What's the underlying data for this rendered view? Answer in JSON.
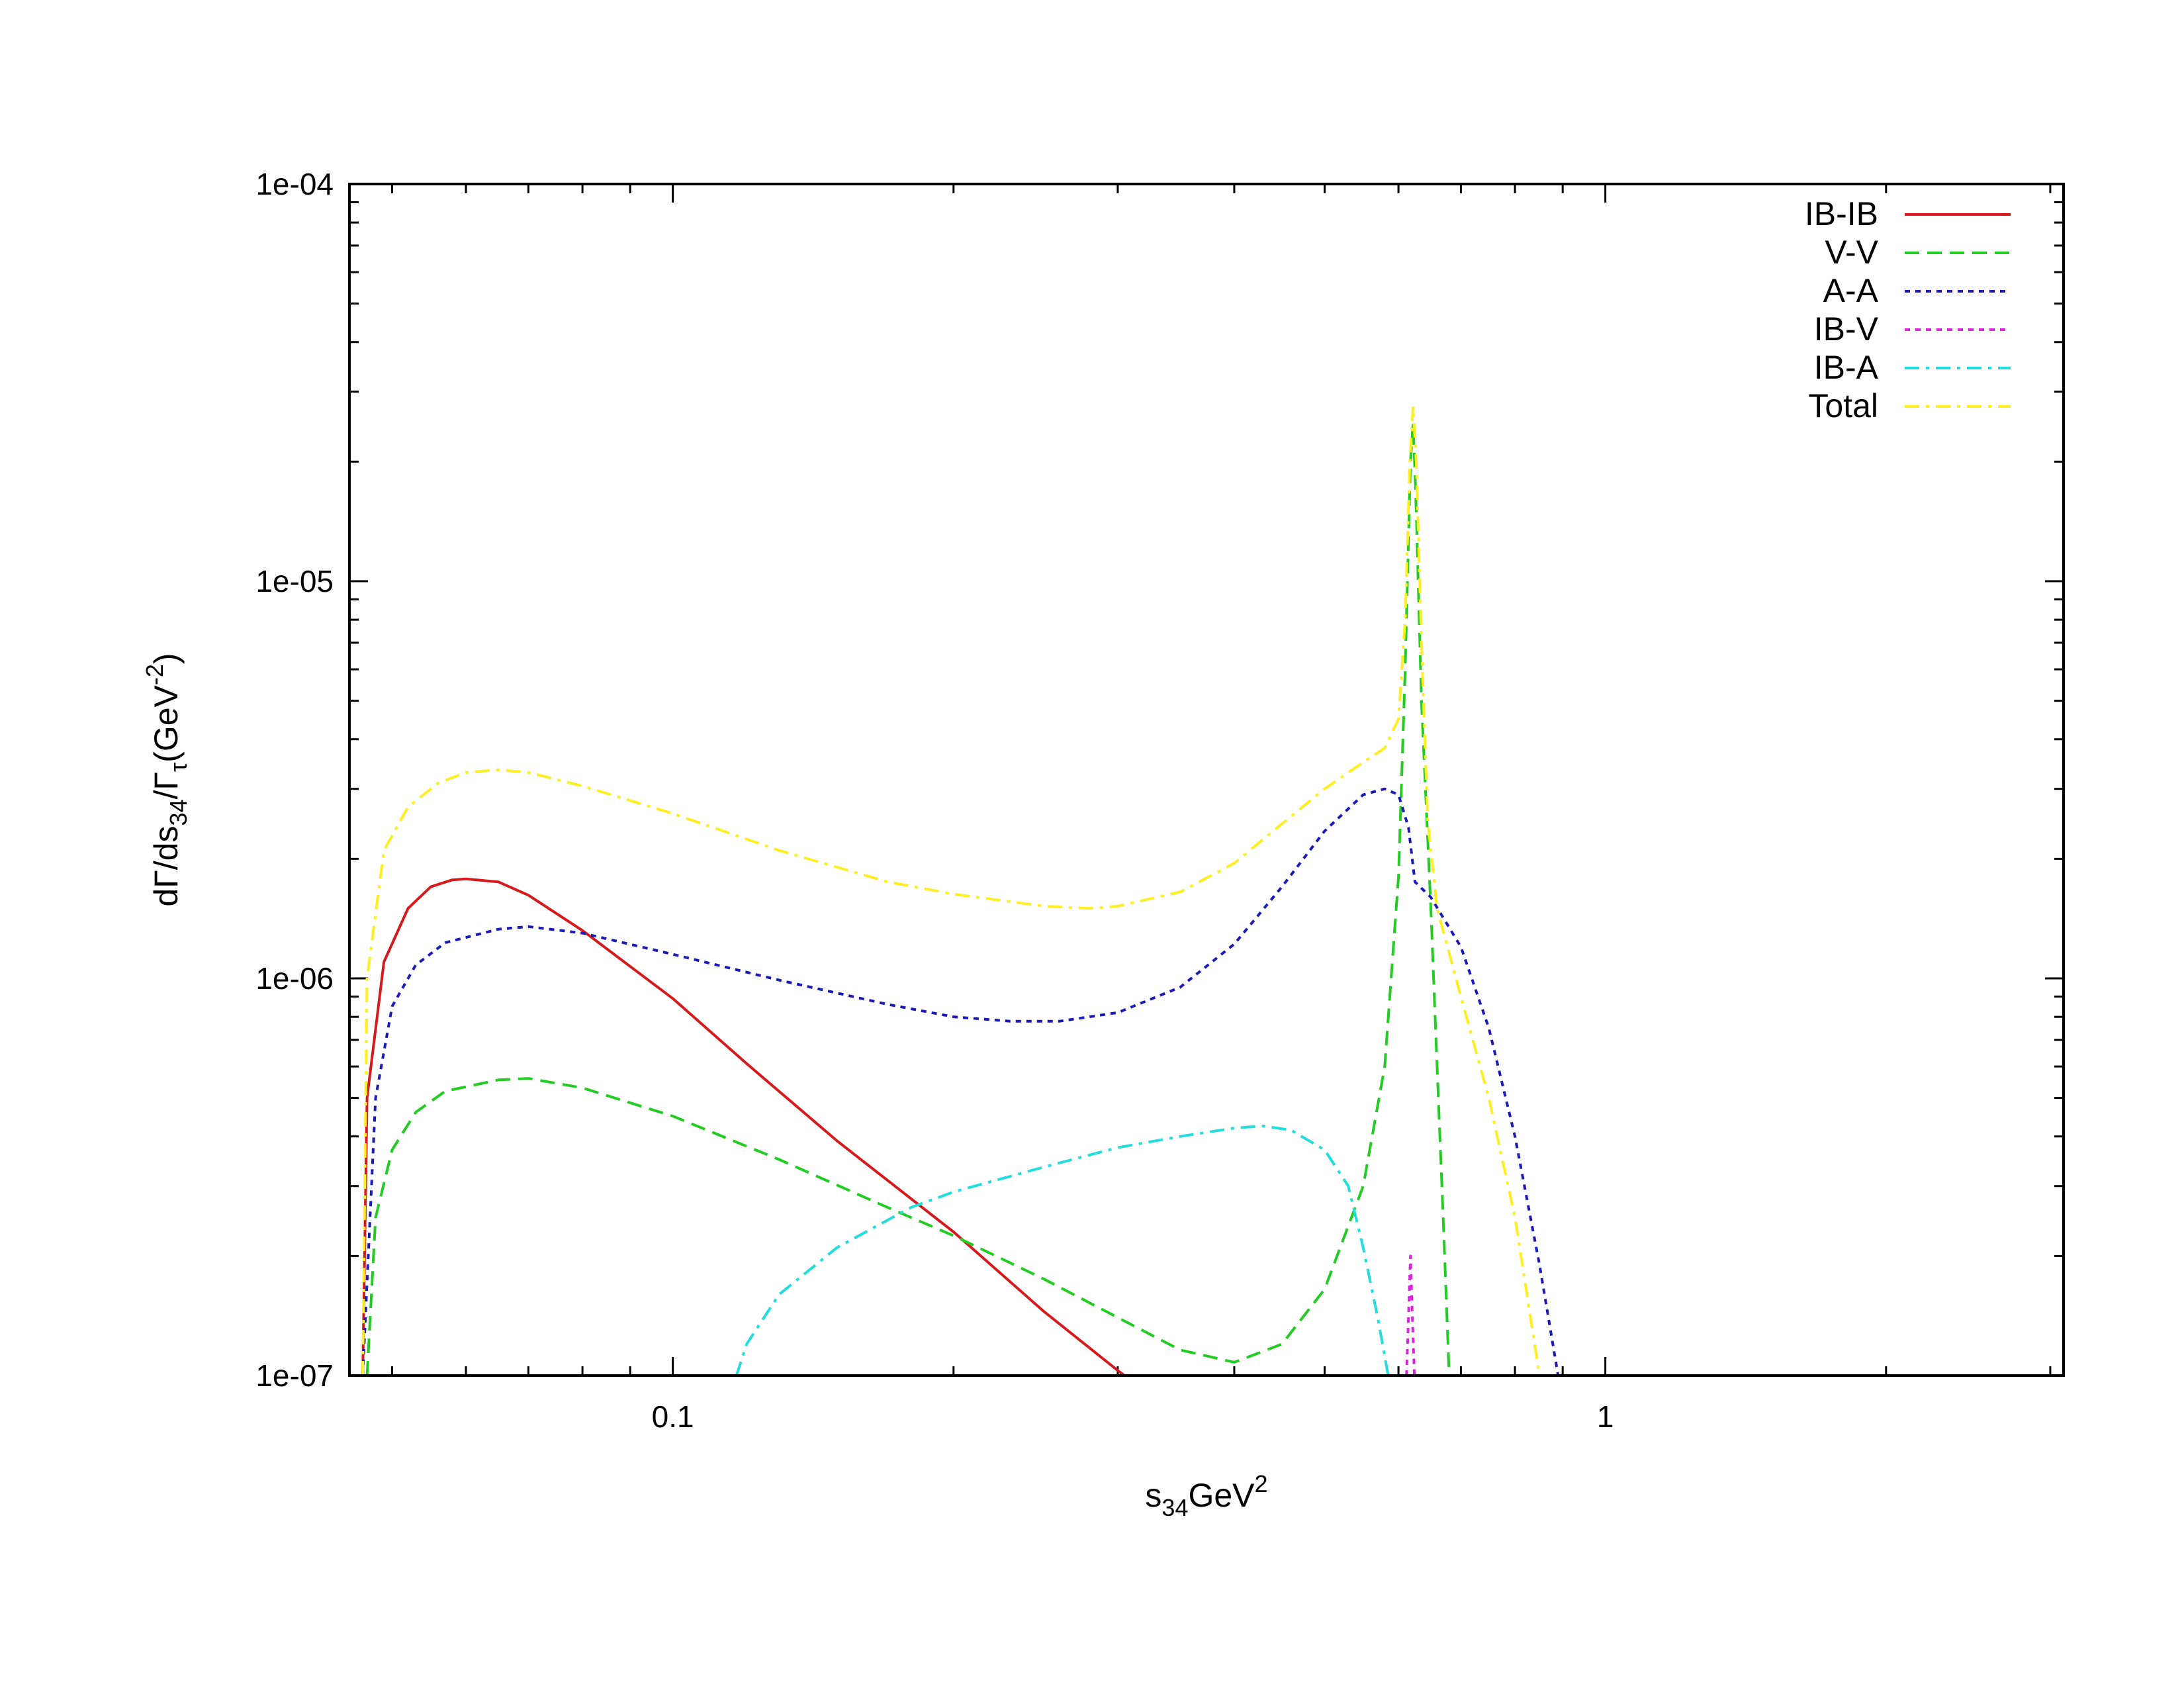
{
  "chart_data": {
    "type": "line",
    "title": "",
    "xlabel": {
      "main": "s",
      "sub": "34",
      "tail": "GeV",
      "sup": "2"
    },
    "ylabel": {
      "p1": "dΓ/ds",
      "sub1": "34",
      "p2": "/Γ",
      "sub2": "τ",
      "p3": "(GeV",
      "sup": "-2",
      "p4": ")"
    },
    "x_scale": "log",
    "y_scale": "log",
    "xlim": [
      0.045,
      3.1
    ],
    "ylim": [
      1e-07,
      0.0001
    ],
    "x_tick_labels": [
      {
        "value": 0.1,
        "label": "0.1"
      },
      {
        "value": 1,
        "label": "1"
      }
    ],
    "y_tick_labels": [
      {
        "value": 0.0001,
        "label": "1e-04"
      },
      {
        "value": 1e-05,
        "label": "1e-05"
      },
      {
        "value": 1e-06,
        "label": "1e-06"
      },
      {
        "value": 1e-07,
        "label": "1e-07"
      }
    ],
    "grid": false,
    "legend_position": "top-right",
    "series": [
      {
        "name": "IB-IB",
        "color": "#d7191c",
        "dash": "solid",
        "points": [
          [
            0.0465,
            1e-07
          ],
          [
            0.047,
            5e-07
          ],
          [
            0.049,
            1.1e-06
          ],
          [
            0.052,
            1.5e-06
          ],
          [
            0.055,
            1.7e-06
          ],
          [
            0.058,
            1.77e-06
          ],
          [
            0.06,
            1.78e-06
          ],
          [
            0.065,
            1.75e-06
          ],
          [
            0.07,
            1.62e-06
          ],
          [
            0.08,
            1.32e-06
          ],
          [
            0.1,
            8.9e-07
          ],
          [
            0.12,
            6.1e-07
          ],
          [
            0.15,
            3.9e-07
          ],
          [
            0.2,
            2.3e-07
          ],
          [
            0.25,
            1.45e-07
          ],
          [
            0.3,
            1.03e-07
          ],
          [
            0.305,
            1e-07
          ]
        ]
      },
      {
        "name": "V-V",
        "color": "#22cc22",
        "dash": "dashed",
        "points": [
          [
            0.047,
            1e-07
          ],
          [
            0.048,
            2.5e-07
          ],
          [
            0.05,
            3.7e-07
          ],
          [
            0.053,
            4.6e-07
          ],
          [
            0.057,
            5.2e-07
          ],
          [
            0.065,
            5.55e-07
          ],
          [
            0.07,
            5.6e-07
          ],
          [
            0.08,
            5.3e-07
          ],
          [
            0.1,
            4.5e-07
          ],
          [
            0.13,
            3.5e-07
          ],
          [
            0.17,
            2.65e-07
          ],
          [
            0.2,
            2.25e-07
          ],
          [
            0.25,
            1.75e-07
          ],
          [
            0.3,
            1.4e-07
          ],
          [
            0.35,
            1.16e-07
          ],
          [
            0.4,
            1.08e-07
          ],
          [
            0.45,
            1.2e-07
          ],
          [
            0.5,
            1.65e-07
          ],
          [
            0.55,
            3e-07
          ],
          [
            0.58,
            6e-07
          ],
          [
            0.6,
            1.8e-06
          ],
          [
            0.61,
            6e-06
          ],
          [
            0.618,
            2e-05
          ],
          [
            0.622,
            2.5e-05
          ],
          [
            0.626,
            1.7e-05
          ],
          [
            0.635,
            5e-06
          ],
          [
            0.65,
            1.5e-06
          ],
          [
            0.66,
            6e-07
          ],
          [
            0.67,
            2.5e-07
          ],
          [
            0.68,
            1e-07
          ]
        ]
      },
      {
        "name": "A-A",
        "color": "#1a1ab8",
        "dash": "dotted",
        "points": [
          [
            0.0465,
            1e-07
          ],
          [
            0.048,
            5e-07
          ],
          [
            0.05,
            8.5e-07
          ],
          [
            0.053,
            1.08e-06
          ],
          [
            0.057,
            1.23e-06
          ],
          [
            0.065,
            1.33e-06
          ],
          [
            0.07,
            1.35e-06
          ],
          [
            0.08,
            1.3e-06
          ],
          [
            0.1,
            1.15e-06
          ],
          [
            0.13,
            9.9e-07
          ],
          [
            0.17,
            8.6e-07
          ],
          [
            0.2,
            8e-07
          ],
          [
            0.23,
            7.8e-07
          ],
          [
            0.26,
            7.8e-07
          ],
          [
            0.3,
            8.2e-07
          ],
          [
            0.35,
            9.5e-07
          ],
          [
            0.4,
            1.22e-06
          ],
          [
            0.45,
            1.7e-06
          ],
          [
            0.5,
            2.35e-06
          ],
          [
            0.55,
            2.9e-06
          ],
          [
            0.58,
            3e-06
          ],
          [
            0.6,
            2.9e-06
          ],
          [
            0.615,
            2.4e-06
          ],
          [
            0.625,
            1.75e-06
          ],
          [
            0.65,
            1.6e-06
          ],
          [
            0.7,
            1.2e-06
          ],
          [
            0.75,
            7.5e-07
          ],
          [
            0.8,
            4e-07
          ],
          [
            0.85,
            1.9e-07
          ],
          [
            0.89,
            1e-07
          ]
        ]
      },
      {
        "name": "IB-V",
        "color": "#dd22dd",
        "dash": "dotted",
        "points": [
          [
            0.612,
            1e-07
          ],
          [
            0.615,
            1.4e-07
          ],
          [
            0.618,
            2e-07
          ],
          [
            0.621,
            1.4e-07
          ],
          [
            0.624,
            1e-07
          ]
        ]
      },
      {
        "name": "IB-A",
        "color": "#22dddd",
        "dash": "dashdot",
        "points": [
          [
            0.117,
            1e-07
          ],
          [
            0.12,
            1.2e-07
          ],
          [
            0.13,
            1.6e-07
          ],
          [
            0.15,
            2.1e-07
          ],
          [
            0.18,
            2.65e-07
          ],
          [
            0.2,
            2.9e-07
          ],
          [
            0.25,
            3.35e-07
          ],
          [
            0.3,
            3.75e-07
          ],
          [
            0.35,
            4e-07
          ],
          [
            0.4,
            4.2e-07
          ],
          [
            0.43,
            4.25e-07
          ],
          [
            0.46,
            4.15e-07
          ],
          [
            0.5,
            3.7e-07
          ],
          [
            0.53,
            3e-07
          ],
          [
            0.55,
            2.1e-07
          ],
          [
            0.57,
            1.4e-07
          ],
          [
            0.585,
            1e-07
          ]
        ]
      },
      {
        "name": "Total",
        "color": "#ffee22",
        "dash": "dashdot",
        "points": [
          [
            0.0465,
            1e-07
          ],
          [
            0.047,
            1e-06
          ],
          [
            0.049,
            2.1e-06
          ],
          [
            0.052,
            2.7e-06
          ],
          [
            0.056,
            3.1e-06
          ],
          [
            0.06,
            3.3e-06
          ],
          [
            0.065,
            3.35e-06
          ],
          [
            0.07,
            3.3e-06
          ],
          [
            0.08,
            3.05e-06
          ],
          [
            0.1,
            2.6e-06
          ],
          [
            0.13,
            2.1e-06
          ],
          [
            0.17,
            1.75e-06
          ],
          [
            0.2,
            1.63e-06
          ],
          [
            0.25,
            1.52e-06
          ],
          [
            0.28,
            1.5e-06
          ],
          [
            0.3,
            1.52e-06
          ],
          [
            0.35,
            1.65e-06
          ],
          [
            0.4,
            1.95e-06
          ],
          [
            0.45,
            2.45e-06
          ],
          [
            0.5,
            3e-06
          ],
          [
            0.55,
            3.5e-06
          ],
          [
            0.58,
            3.8e-06
          ],
          [
            0.6,
            4.5e-06
          ],
          [
            0.61,
            8e-06
          ],
          [
            0.617,
            2e-05
          ],
          [
            0.622,
            2.75e-05
          ],
          [
            0.627,
            2e-05
          ],
          [
            0.635,
            7e-06
          ],
          [
            0.645,
            2.5e-06
          ],
          [
            0.66,
            1.5e-06
          ],
          [
            0.7,
            9e-07
          ],
          [
            0.75,
            5e-07
          ],
          [
            0.8,
            2.5e-07
          ],
          [
            0.85,
            1e-07
          ]
        ]
      }
    ]
  }
}
